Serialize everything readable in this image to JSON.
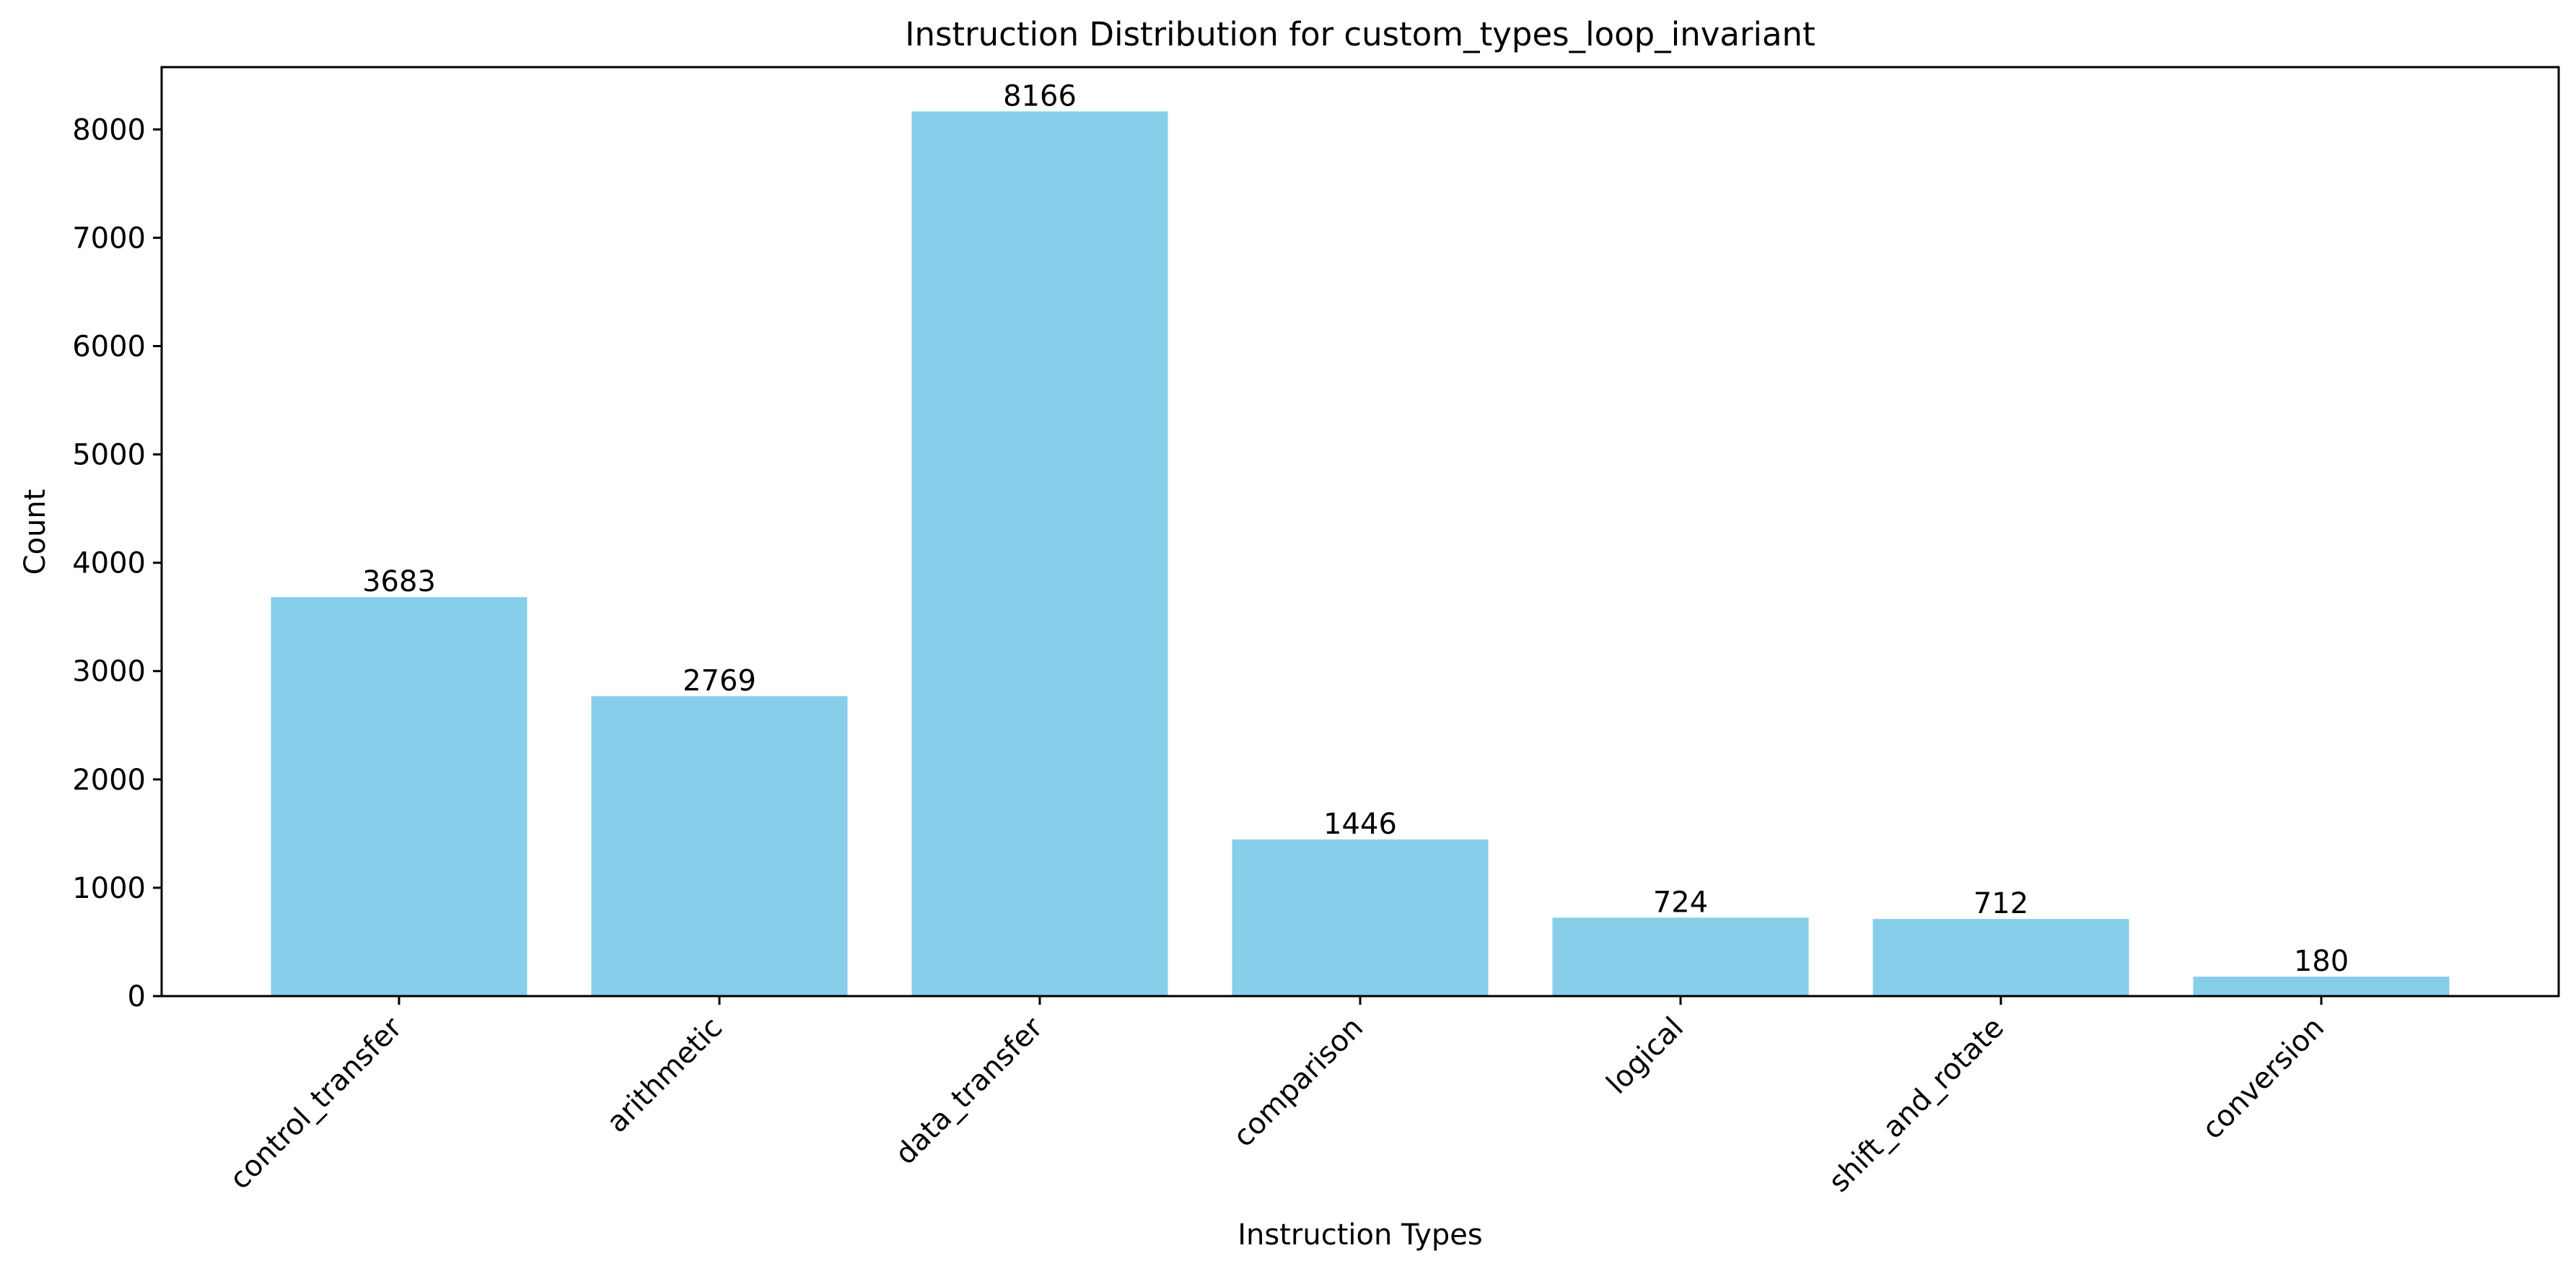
{
  "chart_data": {
    "type": "bar",
    "title": "Instruction Distribution for custom_types_loop_invariant",
    "xlabel": "Instruction Types",
    "ylabel": "Count",
    "categories": [
      "control_transfer",
      "arithmetic",
      "data_transfer",
      "comparison",
      "logical",
      "shift_and_rotate",
      "conversion"
    ],
    "values": [
      3683,
      2769,
      8166,
      1446,
      724,
      712,
      180
    ],
    "ylim": [
      0,
      8575
    ],
    "yticks": [
      0,
      1000,
      2000,
      3000,
      4000,
      5000,
      6000,
      7000,
      8000
    ],
    "bar_color": "#87ceeb",
    "grid": false,
    "legend": "none"
  }
}
